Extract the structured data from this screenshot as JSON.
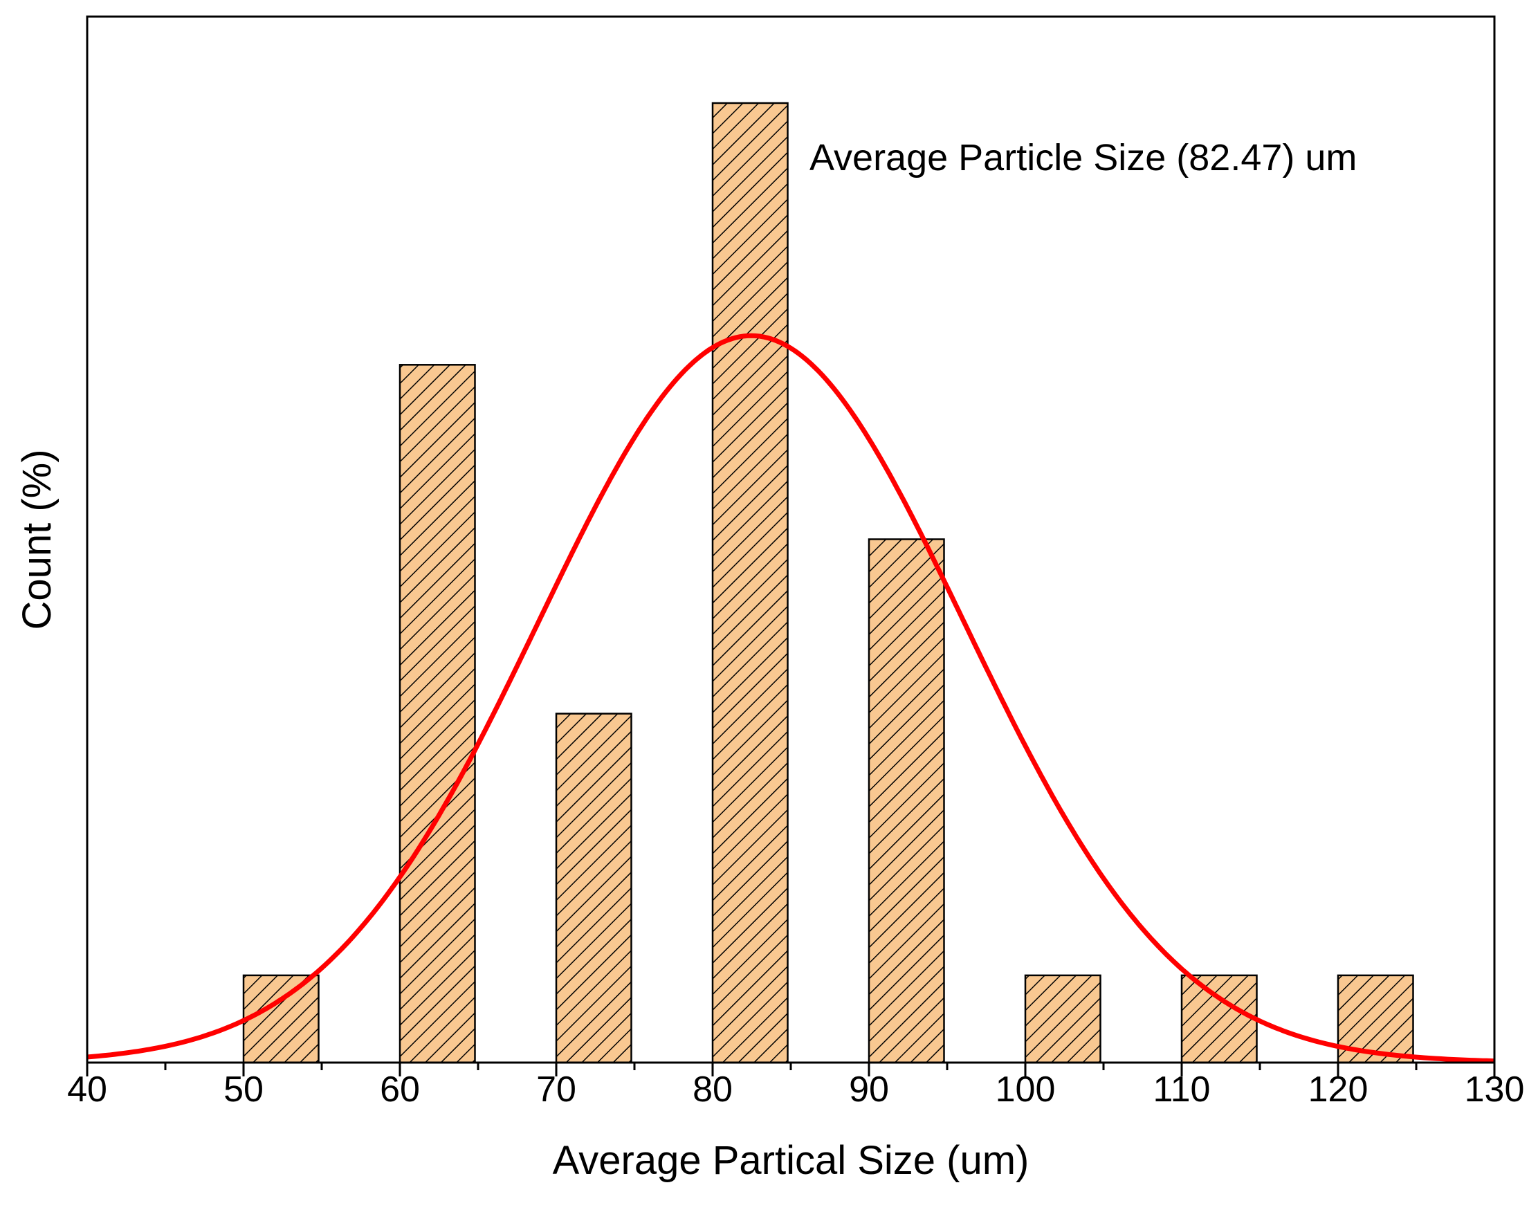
{
  "chart_data": {
    "type": "bar",
    "title": "",
    "xlabel": "Average Partical Size (um)",
    "ylabel": "Count (%)",
    "xlim": [
      40,
      130
    ],
    "ylim": [
      0,
      33
    ],
    "y_ticks_shown": false,
    "x_ticks": [
      40,
      50,
      60,
      70,
      80,
      90,
      100,
      110,
      120,
      130
    ],
    "x_tick_labels": [
      "40",
      "50",
      "60",
      "70",
      "80",
      "90",
      "100",
      "110",
      "120",
      "130"
    ],
    "bar_width": 4.8,
    "bars": [
      {
        "bin_start": 50,
        "bin_end": 55,
        "value": 3
      },
      {
        "bin_start": 60,
        "bin_end": 65,
        "value": 24
      },
      {
        "bin_start": 70,
        "bin_end": 75,
        "value": 12
      },
      {
        "bin_start": 80,
        "bin_end": 85,
        "value": 33
      },
      {
        "bin_start": 90,
        "bin_end": 95,
        "value": 18
      },
      {
        "bin_start": 100,
        "bin_end": 105,
        "value": 3
      },
      {
        "bin_start": 110,
        "bin_end": 115,
        "value": 3
      },
      {
        "bin_start": 120,
        "bin_end": 125,
        "value": 3
      }
    ],
    "fit": {
      "type": "normal",
      "mean": 82.47,
      "sigma": 13.6,
      "peak": 25
    },
    "annotation": "Average Particle Size (82.47) um",
    "colors": {
      "bar_fill": "#F9C891",
      "bar_edge": "#000000",
      "hatch": "#000000",
      "fit_line": "#FF0000",
      "axis": "#000000"
    }
  }
}
